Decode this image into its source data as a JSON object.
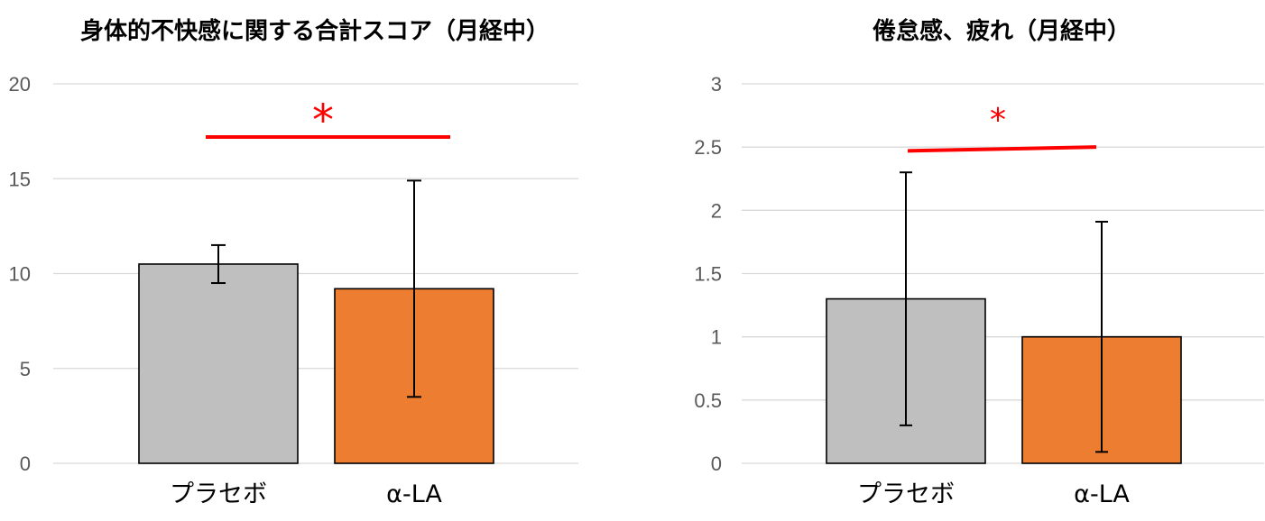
{
  "chart_data": [
    {
      "type": "bar",
      "title": "身体的不快感に関する合計スコア（月経中）",
      "categories": [
        "プラセボ",
        "α-LA"
      ],
      "values": [
        10.5,
        9.2
      ],
      "error_upper": [
        11.5,
        14.9
      ],
      "error_lower": [
        9.5,
        3.5
      ],
      "colors": [
        "#bfbfbf",
        "#ed7d31"
      ],
      "ylim": [
        0,
        20
      ],
      "yticks": [
        0,
        5,
        10,
        15,
        20
      ],
      "ytick_labels": [
        "0",
        "5",
        "10",
        "15",
        "20"
      ],
      "grid": true,
      "significance": {
        "label": "*",
        "color": "#ff0000",
        "y_start": 17.2,
        "y_end": 17.2
      }
    },
    {
      "type": "bar",
      "title": "倦怠感、疲れ（月経中）",
      "categories": [
        "プラセボ",
        "α-LA"
      ],
      "values": [
        1.3,
        1.0
      ],
      "error_upper": [
        2.3,
        1.91
      ],
      "error_lower": [
        0.3,
        0.09
      ],
      "colors": [
        "#bfbfbf",
        "#ed7d31"
      ],
      "ylim": [
        0,
        3
      ],
      "yticks": [
        0,
        0.5,
        1,
        1.5,
        2,
        2.5,
        3
      ],
      "ytick_labels": [
        "0",
        "0.5",
        "1",
        "1.5",
        "2",
        "2.5",
        "3"
      ],
      "grid": true,
      "significance": {
        "label": "*",
        "color": "#ff0000",
        "y_start": 2.47,
        "y_end": 2.5
      }
    }
  ]
}
